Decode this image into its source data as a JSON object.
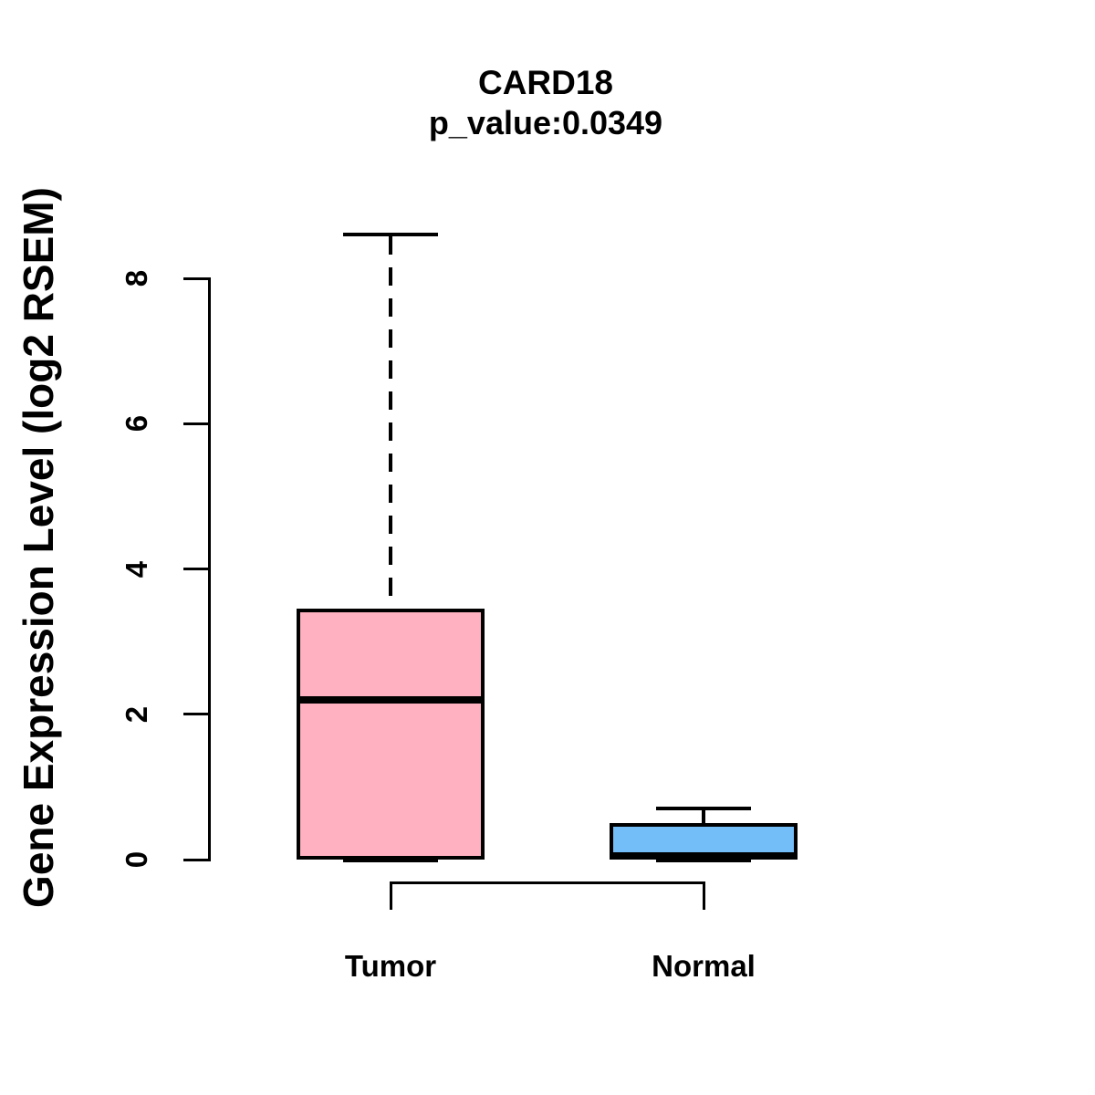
{
  "header": {
    "title": "CARD18",
    "subtitle": "p_value:0.0349"
  },
  "chart_data": {
    "type": "boxplot",
    "title": "CARD18",
    "subtitle": "p_value:0.0349",
    "gene": "CARD18",
    "p_value": 0.0349,
    "ylabel": "Gene Expression Level (log2 RSEM)",
    "ylim": [
      0,
      8.7
    ],
    "yticks": [
      0,
      2,
      4,
      6,
      8
    ],
    "grid": false,
    "legend": "none",
    "categories": [
      "Tumor",
      "Normal"
    ],
    "series": [
      {
        "name": "Tumor",
        "color": "#FFB0C1",
        "whisker_low": 0,
        "q1": 0,
        "median": 2.2,
        "q3": 3.45,
        "whisker_high": 8.6
      },
      {
        "name": "Normal",
        "color": "#73BDF8",
        "whisker_low": 0,
        "q1": 0,
        "median": 0.05,
        "q3": 0.5,
        "whisker_high": 0.7
      }
    ]
  }
}
